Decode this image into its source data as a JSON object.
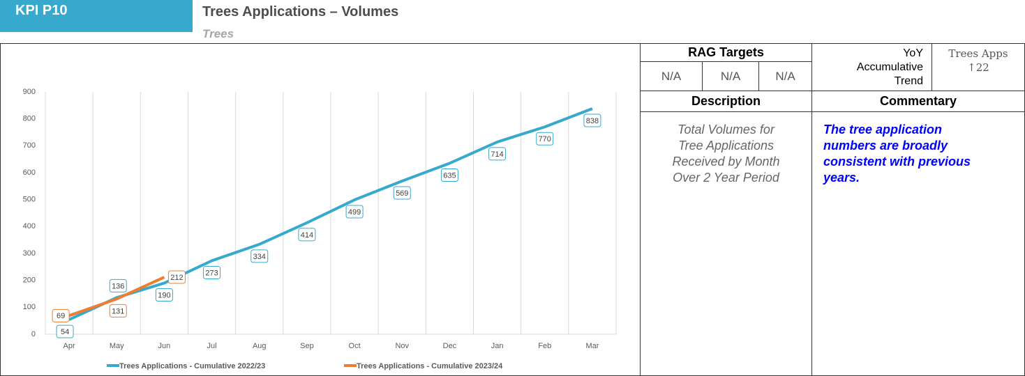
{
  "header": {
    "kpi": "KPI P10",
    "title": "Trees Applications – Volumes",
    "subtitle": "Trees"
  },
  "chart_data": {
    "type": "line",
    "categories": [
      "Apr",
      "May",
      "Jun",
      "Jul",
      "Aug",
      "Sep",
      "Oct",
      "Nov",
      "Dec",
      "Jan",
      "Feb",
      "Mar"
    ],
    "series": [
      {
        "name": "Trees Applications - Cumulative 2022/23",
        "color": "#36a9cd",
        "values": [
          54,
          136,
          190,
          273,
          334,
          414,
          499,
          569,
          635,
          714,
          770,
          838
        ]
      },
      {
        "name": "Trees Applications - Cumulative 2023/24",
        "color": "#ed7d31",
        "values": [
          69,
          131,
          212,
          null,
          null,
          null,
          null,
          null,
          null,
          null,
          null,
          null
        ]
      }
    ],
    "ylim": [
      0,
      900
    ],
    "yticks": [
      0,
      100,
      200,
      300,
      400,
      500,
      600,
      700,
      800,
      900
    ],
    "grid": true,
    "legend": "bottom"
  },
  "panel": {
    "rag_header": "RAG Targets",
    "rag_values": [
      "N/A",
      "N/A",
      "N/A"
    ],
    "trend_label": [
      "YoY",
      "Accumulative",
      "Trend"
    ],
    "trend_name": "Trees Apps",
    "trend_value": "↑22",
    "description_header": "Description",
    "commentary_header": "Commentary",
    "description": [
      "Total Volumes for",
      "Tree Applications",
      "Received by Month",
      "Over 2 Year Period"
    ],
    "commentary": [
      "The tree application",
      "numbers are broadly",
      "consistent with previous",
      "years."
    ]
  }
}
